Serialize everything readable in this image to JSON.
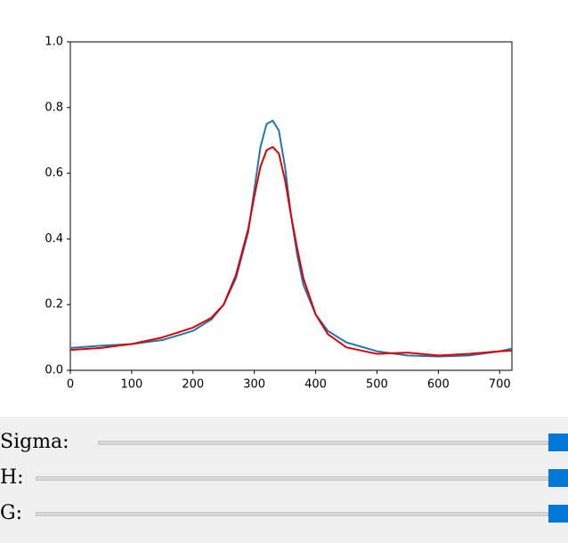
{
  "chart_data": {
    "type": "line",
    "x": [
      0,
      50,
      100,
      150,
      200,
      230,
      250,
      270,
      290,
      300,
      310,
      320,
      330,
      340,
      350,
      360,
      370,
      380,
      400,
      420,
      450,
      500,
      550,
      600,
      650,
      700,
      720
    ],
    "series": [
      {
        "color": "#1f77b4",
        "values": [
          0.068,
          0.075,
          0.08,
          0.092,
          0.12,
          0.155,
          0.2,
          0.28,
          0.42,
          0.55,
          0.68,
          0.75,
          0.76,
          0.73,
          0.62,
          0.47,
          0.35,
          0.26,
          0.17,
          0.12,
          0.085,
          0.058,
          0.045,
          0.042,
          0.045,
          0.058,
          0.066
        ]
      },
      {
        "color": "#e00000",
        "values": [
          0.062,
          0.068,
          0.08,
          0.1,
          0.13,
          0.16,
          0.2,
          0.29,
          0.43,
          0.53,
          0.62,
          0.67,
          0.68,
          0.66,
          0.58,
          0.47,
          0.37,
          0.28,
          0.17,
          0.11,
          0.07,
          0.05,
          0.054,
          0.045,
          0.05,
          0.058,
          0.06
        ]
      }
    ],
    "xlim": [
      0,
      720
    ],
    "xticks": [
      0,
      100,
      200,
      300,
      400,
      500,
      600,
      700
    ],
    "ylim": [
      0,
      1
    ],
    "yticks": [
      {
        "value": 0,
        "label": "0.0"
      },
      {
        "value": 0.2,
        "label": "0.2"
      },
      {
        "value": 0.4,
        "label": "0.4"
      },
      {
        "value": 0.6,
        "label": "0.6"
      },
      {
        "value": 0.8,
        "label": "0.8"
      },
      {
        "value": 1,
        "label": "1.0"
      }
    ]
  },
  "controls": {
    "sliders": [
      {
        "label": "Sigma:"
      },
      {
        "label": "H:"
      },
      {
        "label": "G:"
      }
    ]
  }
}
